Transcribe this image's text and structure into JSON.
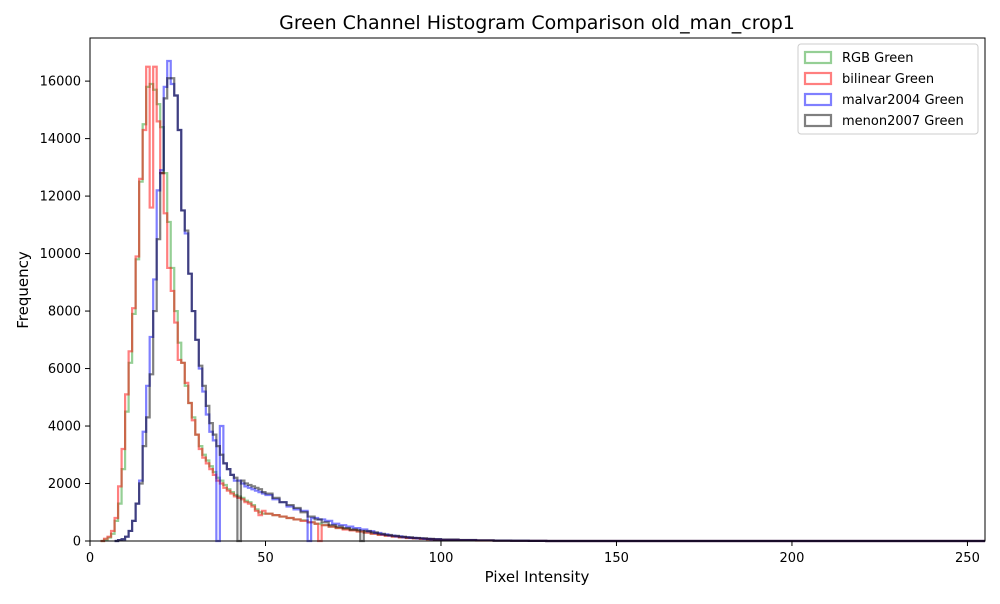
{
  "chart_data": {
    "type": "histogram",
    "title": "Green Channel Histogram Comparison old_man_crop1",
    "xlabel": "Pixel Intensity",
    "ylabel": "Frequency",
    "xlim": [
      0,
      255
    ],
    "ylim": [
      0,
      17500
    ],
    "x_ticks": [
      0,
      50,
      100,
      150,
      200,
      250
    ],
    "y_ticks": [
      0,
      2000,
      4000,
      6000,
      8000,
      10000,
      12000,
      14000,
      16000
    ],
    "grid": false,
    "legend_position": "top-right",
    "series": [
      {
        "name": "RGB Green",
        "color": "#2ca02c",
        "points": [
          [
            3,
            0
          ],
          [
            4,
            50
          ],
          [
            5,
            120
          ],
          [
            6,
            250
          ],
          [
            7,
            700
          ],
          [
            8,
            1300
          ],
          [
            9,
            2500
          ],
          [
            10,
            4500
          ],
          [
            11,
            6200
          ],
          [
            12,
            7900
          ],
          [
            13,
            9800
          ],
          [
            14,
            12500
          ],
          [
            15,
            14500
          ],
          [
            16,
            15800
          ],
          [
            17,
            15900
          ],
          [
            18,
            15700
          ],
          [
            19,
            15200
          ],
          [
            20,
            14400
          ],
          [
            21,
            12800
          ],
          [
            22,
            11100
          ],
          [
            23,
            9500
          ],
          [
            24,
            8000
          ],
          [
            25,
            6900
          ],
          [
            26,
            6200
          ],
          [
            27,
            5400
          ],
          [
            28,
            4800
          ],
          [
            29,
            4300
          ],
          [
            30,
            3700
          ],
          [
            31,
            3300
          ],
          [
            32,
            3000
          ],
          [
            33,
            2800
          ],
          [
            34,
            2600
          ],
          [
            35,
            2400
          ],
          [
            36,
            2200
          ],
          [
            37,
            2100
          ],
          [
            38,
            1950
          ],
          [
            39,
            1800
          ],
          [
            40,
            1700
          ],
          [
            41,
            1600
          ],
          [
            42,
            1550
          ],
          [
            43,
            1500
          ],
          [
            44,
            1400
          ],
          [
            45,
            1350
          ],
          [
            46,
            1250
          ],
          [
            47,
            1100
          ],
          [
            48,
            1000
          ],
          [
            49,
            950
          ],
          [
            50,
            950
          ],
          [
            52,
            900
          ],
          [
            54,
            850
          ],
          [
            56,
            800
          ],
          [
            58,
            750
          ],
          [
            60,
            720
          ],
          [
            62,
            650
          ],
          [
            64,
            600
          ],
          [
            66,
            550
          ],
          [
            68,
            500
          ],
          [
            70,
            450
          ],
          [
            72,
            420
          ],
          [
            74,
            380
          ],
          [
            76,
            340
          ],
          [
            78,
            300
          ],
          [
            80,
            260
          ],
          [
            82,
            220
          ],
          [
            84,
            190
          ],
          [
            86,
            160
          ],
          [
            88,
            130
          ],
          [
            90,
            110
          ],
          [
            92,
            95
          ],
          [
            94,
            80
          ],
          [
            96,
            65
          ],
          [
            98,
            55
          ],
          [
            100,
            45
          ],
          [
            105,
            30
          ],
          [
            110,
            20
          ],
          [
            115,
            12
          ],
          [
            120,
            8
          ],
          [
            125,
            4
          ],
          [
            130,
            0
          ],
          [
            255,
            0
          ]
        ]
      },
      {
        "name": "bilinear Green",
        "color": "#ff0000",
        "points": [
          [
            3,
            0
          ],
          [
            4,
            80
          ],
          [
            5,
            150
          ],
          [
            6,
            350
          ],
          [
            7,
            800
          ],
          [
            8,
            1900
          ],
          [
            9,
            3200
          ],
          [
            10,
            5100
          ],
          [
            11,
            6600
          ],
          [
            12,
            8100
          ],
          [
            13,
            9900
          ],
          [
            14,
            12600
          ],
          [
            15,
            14300
          ],
          [
            16,
            16500
          ],
          [
            17,
            11600
          ],
          [
            18,
            16500
          ],
          [
            19,
            14600
          ],
          [
            20,
            12800
          ],
          [
            21,
            11400
          ],
          [
            22,
            9500
          ],
          [
            23,
            8700
          ],
          [
            24,
            7600
          ],
          [
            25,
            6300
          ],
          [
            26,
            6200
          ],
          [
            27,
            5500
          ],
          [
            28,
            4800
          ],
          [
            29,
            4200
          ],
          [
            30,
            3700
          ],
          [
            31,
            3200
          ],
          [
            32,
            2900
          ],
          [
            33,
            2700
          ],
          [
            34,
            2500
          ],
          [
            35,
            2300
          ],
          [
            36,
            2100
          ],
          [
            37,
            2000
          ],
          [
            38,
            1850
          ],
          [
            39,
            1750
          ],
          [
            40,
            1650
          ],
          [
            41,
            1550
          ],
          [
            42,
            1500
          ],
          [
            43,
            1450
          ],
          [
            44,
            1350
          ],
          [
            45,
            1300
          ],
          [
            46,
            1200
          ],
          [
            47,
            1050
          ],
          [
            48,
            900
          ],
          [
            49,
            1050
          ],
          [
            50,
            950
          ],
          [
            52,
            900
          ],
          [
            54,
            850
          ],
          [
            56,
            800
          ],
          [
            58,
            750
          ],
          [
            60,
            700
          ],
          [
            62,
            650
          ],
          [
            64,
            600
          ],
          [
            65,
            0
          ],
          [
            66,
            550
          ],
          [
            68,
            500
          ],
          [
            70,
            450
          ],
          [
            72,
            400
          ],
          [
            74,
            370
          ],
          [
            76,
            330
          ],
          [
            78,
            290
          ],
          [
            80,
            250
          ],
          [
            82,
            210
          ],
          [
            84,
            180
          ],
          [
            86,
            150
          ],
          [
            88,
            125
          ],
          [
            90,
            105
          ],
          [
            92,
            90
          ],
          [
            94,
            75
          ],
          [
            96,
            60
          ],
          [
            98,
            50
          ],
          [
            100,
            40
          ],
          [
            105,
            28
          ],
          [
            110,
            18
          ],
          [
            115,
            10
          ],
          [
            120,
            6
          ],
          [
            125,
            3
          ],
          [
            130,
            0
          ],
          [
            255,
            0
          ]
        ]
      },
      {
        "name": "malvar2004 Green",
        "color": "#0000ff",
        "points": [
          [
            7,
            0
          ],
          [
            8,
            30
          ],
          [
            9,
            60
          ],
          [
            10,
            150
          ],
          [
            11,
            350
          ],
          [
            12,
            700
          ],
          [
            13,
            1300
          ],
          [
            14,
            2100
          ],
          [
            15,
            3800
          ],
          [
            16,
            5400
          ],
          [
            17,
            7100
          ],
          [
            18,
            9100
          ],
          [
            19,
            12200
          ],
          [
            20,
            12900
          ],
          [
            21,
            15800
          ],
          [
            22,
            16700
          ],
          [
            23,
            15900
          ],
          [
            24,
            15500
          ],
          [
            25,
            14300
          ],
          [
            26,
            11500
          ],
          [
            27,
            10700
          ],
          [
            28,
            9300
          ],
          [
            29,
            8000
          ],
          [
            30,
            7000
          ],
          [
            31,
            6000
          ],
          [
            32,
            5200
          ],
          [
            33,
            4400
          ],
          [
            34,
            3800
          ],
          [
            35,
            3500
          ],
          [
            36,
            0
          ],
          [
            37,
            4000
          ],
          [
            38,
            2700
          ],
          [
            39,
            2500
          ],
          [
            40,
            2300
          ],
          [
            41,
            2100
          ],
          [
            42,
            2100
          ],
          [
            43,
            2000
          ],
          [
            44,
            1900
          ],
          [
            45,
            1850
          ],
          [
            46,
            1800
          ],
          [
            47,
            1750
          ],
          [
            48,
            1700
          ],
          [
            49,
            1650
          ],
          [
            50,
            1600
          ],
          [
            52,
            1450
          ],
          [
            54,
            1350
          ],
          [
            56,
            1200
          ],
          [
            58,
            1100
          ],
          [
            60,
            1050
          ],
          [
            62,
            0
          ],
          [
            63,
            800
          ],
          [
            65,
            750
          ],
          [
            67,
            700
          ],
          [
            69,
            600
          ],
          [
            71,
            550
          ],
          [
            73,
            500
          ],
          [
            75,
            450
          ],
          [
            77,
            400
          ],
          [
            79,
            340
          ],
          [
            81,
            280
          ],
          [
            83,
            230
          ],
          [
            85,
            190
          ],
          [
            87,
            160
          ],
          [
            89,
            130
          ],
          [
            91,
            110
          ],
          [
            93,
            90
          ],
          [
            95,
            75
          ],
          [
            97,
            60
          ],
          [
            100,
            45
          ],
          [
            105,
            30
          ],
          [
            110,
            20
          ],
          [
            115,
            12
          ],
          [
            120,
            8
          ],
          [
            125,
            4
          ],
          [
            130,
            0
          ],
          [
            255,
            0
          ]
        ]
      },
      {
        "name": "menon2007 Green",
        "color": "#000000",
        "points": [
          [
            7,
            0
          ],
          [
            8,
            30
          ],
          [
            9,
            60
          ],
          [
            10,
            150
          ],
          [
            11,
            350
          ],
          [
            12,
            700
          ],
          [
            13,
            1300
          ],
          [
            14,
            2000
          ],
          [
            15,
            3300
          ],
          [
            16,
            4300
          ],
          [
            17,
            5800
          ],
          [
            18,
            8000
          ],
          [
            19,
            10500
          ],
          [
            20,
            12800
          ],
          [
            21,
            15400
          ],
          [
            22,
            16100
          ],
          [
            23,
            16100
          ],
          [
            24,
            15500
          ],
          [
            25,
            14300
          ],
          [
            26,
            11500
          ],
          [
            27,
            10800
          ],
          [
            28,
            9300
          ],
          [
            29,
            8000
          ],
          [
            30,
            7000
          ],
          [
            31,
            6100
          ],
          [
            32,
            5400
          ],
          [
            33,
            4700
          ],
          [
            34,
            4100
          ],
          [
            35,
            3700
          ],
          [
            36,
            3300
          ],
          [
            37,
            3000
          ],
          [
            38,
            2700
          ],
          [
            39,
            2500
          ],
          [
            40,
            2300
          ],
          [
            41,
            2200
          ],
          [
            42,
            0
          ],
          [
            43,
            2100
          ],
          [
            44,
            2000
          ],
          [
            45,
            1950
          ],
          [
            46,
            1900
          ],
          [
            47,
            1850
          ],
          [
            48,
            1800
          ],
          [
            49,
            1700
          ],
          [
            50,
            1650
          ],
          [
            52,
            1500
          ],
          [
            54,
            1350
          ],
          [
            56,
            1250
          ],
          [
            58,
            1150
          ],
          [
            60,
            1000
          ],
          [
            62,
            850
          ],
          [
            64,
            750
          ],
          [
            66,
            650
          ],
          [
            68,
            550
          ],
          [
            70,
            500
          ],
          [
            72,
            450
          ],
          [
            74,
            400
          ],
          [
            76,
            380
          ],
          [
            77,
            0
          ],
          [
            78,
            350
          ],
          [
            80,
            300
          ],
          [
            82,
            250
          ],
          [
            84,
            210
          ],
          [
            86,
            180
          ],
          [
            88,
            150
          ],
          [
            90,
            125
          ],
          [
            92,
            105
          ],
          [
            94,
            90
          ],
          [
            96,
            75
          ],
          [
            98,
            60
          ],
          [
            100,
            50
          ],
          [
            105,
            35
          ],
          [
            110,
            22
          ],
          [
            115,
            14
          ],
          [
            120,
            8
          ],
          [
            125,
            4
          ],
          [
            130,
            0
          ],
          [
            255,
            0
          ]
        ]
      }
    ]
  }
}
